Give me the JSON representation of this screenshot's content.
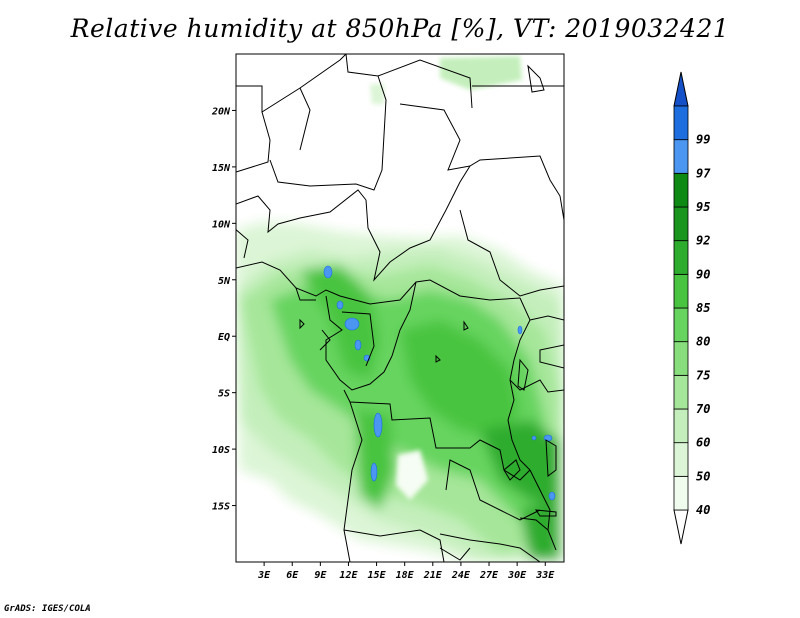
{
  "title": "Relative humidity at 850hPa [%], VT: 2019032421",
  "footer": "GrADS: IGES/COLA",
  "map": {
    "lat_labels": [
      {
        "text": "20N",
        "lat": 20
      },
      {
        "text": "15N",
        "lat": 15
      },
      {
        "text": "10N",
        "lat": 10
      },
      {
        "text": "5N",
        "lat": 5
      },
      {
        "text": "EQ",
        "lat": 0
      },
      {
        "text": "5S",
        "lat": -5
      },
      {
        "text": "10S",
        "lat": -10
      },
      {
        "text": "15S",
        "lat": -15
      }
    ],
    "lon_labels": [
      {
        "text": "3E",
        "lon": 3
      },
      {
        "text": "6E",
        "lon": 6
      },
      {
        "text": "9E",
        "lon": 9
      },
      {
        "text": "12E",
        "lon": 12
      },
      {
        "text": "15E",
        "lon": 15
      },
      {
        "text": "18E",
        "lon": 18
      },
      {
        "text": "21E",
        "lon": 21
      },
      {
        "text": "24E",
        "lon": 24
      },
      {
        "text": "27E",
        "lon": 27
      },
      {
        "text": "30E",
        "lon": 30
      },
      {
        "text": "33E",
        "lon": 33
      }
    ],
    "lon_range": [
      0,
      35
    ],
    "lat_range": [
      -20,
      25
    ]
  },
  "colorbar": {
    "levels": [
      {
        "label": "40",
        "color": "#f0fcee"
      },
      {
        "label": "50",
        "color": "#dcf5d6"
      },
      {
        "label": "60",
        "color": "#c4efbc"
      },
      {
        "label": "70",
        "color": "#a6e69a"
      },
      {
        "label": "75",
        "color": "#88dd7c"
      },
      {
        "label": "80",
        "color": "#66d45e"
      },
      {
        "label": "85",
        "color": "#48c441"
      },
      {
        "label": "90",
        "color": "#2eac2e"
      },
      {
        "label": "92",
        "color": "#1a961e"
      },
      {
        "label": "95",
        "color": "#0e8a14"
      },
      {
        "label": "97",
        "color": "#4a96f0"
      },
      {
        "label": "99",
        "color": "#1e6ee0"
      }
    ],
    "top_color": "#1450c8",
    "bottom_color": "#ffffff"
  }
}
